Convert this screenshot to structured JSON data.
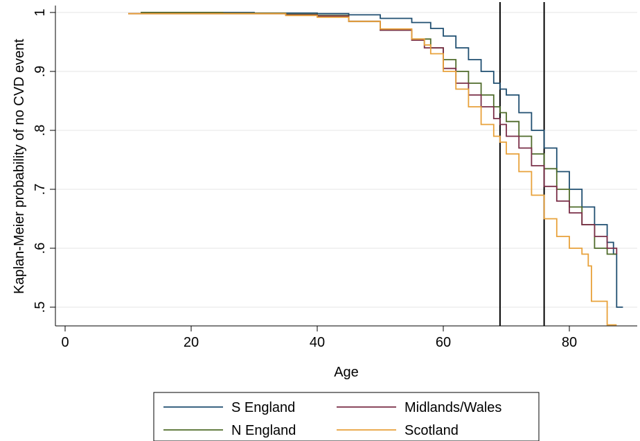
{
  "chart_data": {
    "type": "line",
    "step": true,
    "xlabel": "Age",
    "ylabel": "Kaplan-Meier probability of no CVD event",
    "xlim": [
      0,
      90
    ],
    "ylim": [
      0.47,
      1.0
    ],
    "xticks": [
      {
        "value": 0,
        "label": "0"
      },
      {
        "value": 20,
        "label": "20"
      },
      {
        "value": 40,
        "label": "40"
      },
      {
        "value": 60,
        "label": "60"
      },
      {
        "value": 80,
        "label": "80"
      }
    ],
    "yticks": [
      {
        "value": 0.5,
        "label": ".5"
      },
      {
        "value": 0.6,
        "label": ".6"
      },
      {
        "value": 0.7,
        "label": ".7"
      },
      {
        "value": 0.8,
        "label": ".8"
      },
      {
        "value": 0.9,
        "label": ".9"
      },
      {
        "value": 1.0,
        "label": "1"
      }
    ],
    "grid": "horizontal",
    "vlines": [
      69,
      76
    ],
    "legend_position": "bottom",
    "series": [
      {
        "name": "S England",
        "color": "#1f4e70",
        "points": [
          [
            12,
            1.0
          ],
          [
            25,
            1.0
          ],
          [
            30,
            0.999
          ],
          [
            40,
            0.998
          ],
          [
            45,
            0.996
          ],
          [
            50,
            0.99
          ],
          [
            55,
            0.983
          ],
          [
            58,
            0.973
          ],
          [
            60,
            0.96
          ],
          [
            62,
            0.94
          ],
          [
            64,
            0.92
          ],
          [
            66,
            0.9
          ],
          [
            68,
            0.88
          ],
          [
            69,
            0.87
          ],
          [
            70,
            0.86
          ],
          [
            72,
            0.83
          ],
          [
            74,
            0.8
          ],
          [
            76,
            0.77
          ],
          [
            78,
            0.73
          ],
          [
            80,
            0.7
          ],
          [
            82,
            0.67
          ],
          [
            84,
            0.64
          ],
          [
            86,
            0.61
          ],
          [
            87,
            0.59
          ],
          [
            87.5,
            0.5
          ],
          [
            88.5,
            0.5
          ]
        ]
      },
      {
        "name": "N England",
        "color": "#4f6b2a",
        "points": [
          [
            12,
            1.0
          ],
          [
            25,
            0.999
          ],
          [
            35,
            0.997
          ],
          [
            40,
            0.995
          ],
          [
            45,
            0.985
          ],
          [
            50,
            0.97
          ],
          [
            55,
            0.955
          ],
          [
            58,
            0.94
          ],
          [
            60,
            0.92
          ],
          [
            62,
            0.9
          ],
          [
            64,
            0.88
          ],
          [
            66,
            0.86
          ],
          [
            68,
            0.84
          ],
          [
            69,
            0.83
          ],
          [
            70,
            0.815
          ],
          [
            72,
            0.79
          ],
          [
            74,
            0.76
          ],
          [
            76,
            0.735
          ],
          [
            78,
            0.7
          ],
          [
            80,
            0.67
          ],
          [
            82,
            0.64
          ],
          [
            84,
            0.6
          ],
          [
            85,
            0.6
          ],
          [
            86,
            0.59
          ],
          [
            87.5,
            0.59
          ]
        ]
      },
      {
        "name": "Midlands/Wales",
        "color": "#7a2e47",
        "points": [
          [
            10,
            0.998
          ],
          [
            25,
            0.998
          ],
          [
            35,
            0.996
          ],
          [
            40,
            0.994
          ],
          [
            45,
            0.985
          ],
          [
            50,
            0.97
          ],
          [
            55,
            0.953
          ],
          [
            57,
            0.94
          ],
          [
            60,
            0.905
          ],
          [
            62,
            0.88
          ],
          [
            64,
            0.86
          ],
          [
            66,
            0.84
          ],
          [
            68,
            0.82
          ],
          [
            69,
            0.81
          ],
          [
            70,
            0.79
          ],
          [
            72,
            0.77
          ],
          [
            74,
            0.74
          ],
          [
            76,
            0.705
          ],
          [
            78,
            0.68
          ],
          [
            80,
            0.66
          ],
          [
            82,
            0.64
          ],
          [
            84,
            0.62
          ],
          [
            86,
            0.6
          ],
          [
            87.5,
            0.59
          ]
        ]
      },
      {
        "name": "Scotland",
        "color": "#e8a13a",
        "points": [
          [
            10,
            0.998
          ],
          [
            25,
            0.998
          ],
          [
            35,
            0.995
          ],
          [
            40,
            0.992
          ],
          [
            45,
            0.985
          ],
          [
            50,
            0.972
          ],
          [
            55,
            0.955
          ],
          [
            57,
            0.945
          ],
          [
            58,
            0.93
          ],
          [
            60,
            0.9
          ],
          [
            62,
            0.87
          ],
          [
            64,
            0.84
          ],
          [
            66,
            0.81
          ],
          [
            68,
            0.79
          ],
          [
            69,
            0.78
          ],
          [
            70,
            0.76
          ],
          [
            72,
            0.73
          ],
          [
            74,
            0.69
          ],
          [
            76,
            0.65
          ],
          [
            78,
            0.62
          ],
          [
            80,
            0.6
          ],
          [
            82,
            0.59
          ],
          [
            83,
            0.57
          ],
          [
            83.5,
            0.51
          ],
          [
            85,
            0.51
          ],
          [
            86,
            0.47
          ],
          [
            87.5,
            0.47
          ]
        ]
      }
    ]
  }
}
